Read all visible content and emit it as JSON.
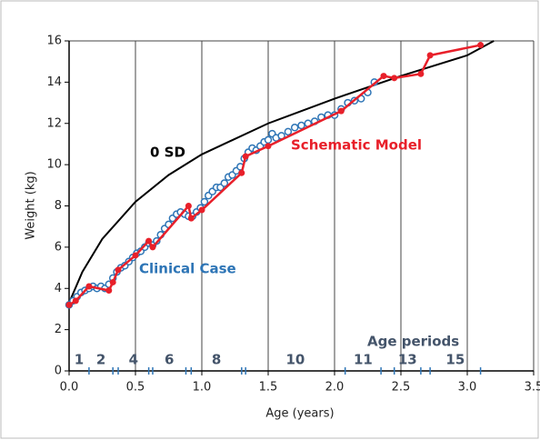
{
  "chart_data": {
    "type": "line",
    "xlabel": "Age (years)",
    "ylabel": "Weight (kg)",
    "xlim": [
      0,
      3.5
    ],
    "ylim": [
      0,
      16
    ],
    "xticks": [
      {
        "value": 0,
        "label": "0.0"
      },
      0.5,
      {
        "value": 1,
        "label": "1.0"
      },
      1.5,
      {
        "value": 2,
        "label": "2.0"
      },
      2.5,
      {
        "value": 3,
        "label": "3.0"
      },
      3.5
    ],
    "yticks": [
      0,
      2,
      4,
      6,
      8,
      10,
      12,
      14,
      16
    ],
    "grid": "x",
    "series": [
      {
        "name": "0 SD",
        "color": "#000000",
        "marker": "none",
        "x": [
          0,
          0.1,
          0.25,
          0.5,
          0.75,
          1.0,
          1.5,
          2.0,
          2.5,
          3.0,
          3.2
        ],
        "values": [
          3.3,
          4.8,
          6.4,
          8.2,
          9.5,
          10.5,
          12.0,
          13.2,
          14.3,
          15.3,
          16
        ]
      },
      {
        "name": "Clinical Case",
        "color": "#2e75b6",
        "marker": "open-circle",
        "x": [
          0,
          0.03,
          0.06,
          0.09,
          0.12,
          0.15,
          0.18,
          0.21,
          0.24,
          0.27,
          0.3,
          0.33,
          0.36,
          0.39,
          0.42,
          0.45,
          0.48,
          0.51,
          0.54,
          0.57,
          0.6,
          0.63,
          0.66,
          0.69,
          0.72,
          0.75,
          0.78,
          0.81,
          0.84,
          0.87,
          0.9,
          0.93,
          0.96,
          0.99,
          1.02,
          1.05,
          1.08,
          1.11,
          1.14,
          1.17,
          1.2,
          1.23,
          1.26,
          1.29,
          1.32,
          1.35,
          1.38,
          1.41,
          1.44,
          1.47,
          1.5,
          1.53,
          1.56,
          1.6,
          1.65,
          1.7,
          1.75,
          1.8,
          1.85,
          1.9,
          1.95,
          2.0,
          2.05,
          2.1,
          2.15,
          2.2,
          2.25,
          2.3
        ],
        "values": [
          3.2,
          3.4,
          3.6,
          3.8,
          3.9,
          4.0,
          4.1,
          4.0,
          4.1,
          4.0,
          4.2,
          4.5,
          4.8,
          5.0,
          5.1,
          5.3,
          5.5,
          5.7,
          5.8,
          6.0,
          6.2,
          6.1,
          6.3,
          6.6,
          6.9,
          7.1,
          7.4,
          7.6,
          7.7,
          7.6,
          7.5,
          7.5,
          7.7,
          7.9,
          8.2,
          8.5,
          8.7,
          8.9,
          8.9,
          9.1,
          9.4,
          9.5,
          9.7,
          9.9,
          10.3,
          10.6,
          10.8,
          10.7,
          10.9,
          11.1,
          11.2,
          11.5,
          11.3,
          11.4,
          11.6,
          11.8,
          11.9,
          12.0,
          12.1,
          12.3,
          12.4,
          12.4,
          12.7,
          13.0,
          13.1,
          13.2,
          13.5,
          14.0
        ]
      },
      {
        "name": "Schematic Model",
        "color": "#e8202a",
        "marker": "dot",
        "x": [
          0,
          0.05,
          0.15,
          0.3,
          0.33,
          0.37,
          0.5,
          0.6,
          0.63,
          0.9,
          0.92,
          1.0,
          1.3,
          1.33,
          1.5,
          2.05,
          2.37,
          2.45,
          2.65,
          2.72,
          3.1
        ],
        "values": [
          3.2,
          3.4,
          4.1,
          3.9,
          4.3,
          4.9,
          5.6,
          6.3,
          6.0,
          8.0,
          7.4,
          7.8,
          9.6,
          10.4,
          10.9,
          12.6,
          14.3,
          14.2,
          14.4,
          15.3,
          15.8
        ]
      }
    ],
    "age_periods": {
      "title": "Age periods",
      "color": "#2e75b6",
      "boundaries": [
        0.15,
        0.33,
        0.37,
        0.6,
        0.63,
        0.88,
        0.92,
        1.3,
        1.33,
        2.08,
        2.35,
        2.45,
        2.65,
        2.72,
        3.1
      ],
      "labels": [
        "1",
        "2",
        null,
        "4",
        null,
        "6",
        null,
        "8",
        null,
        "10",
        "11",
        null,
        "13",
        null,
        "15"
      ]
    }
  }
}
